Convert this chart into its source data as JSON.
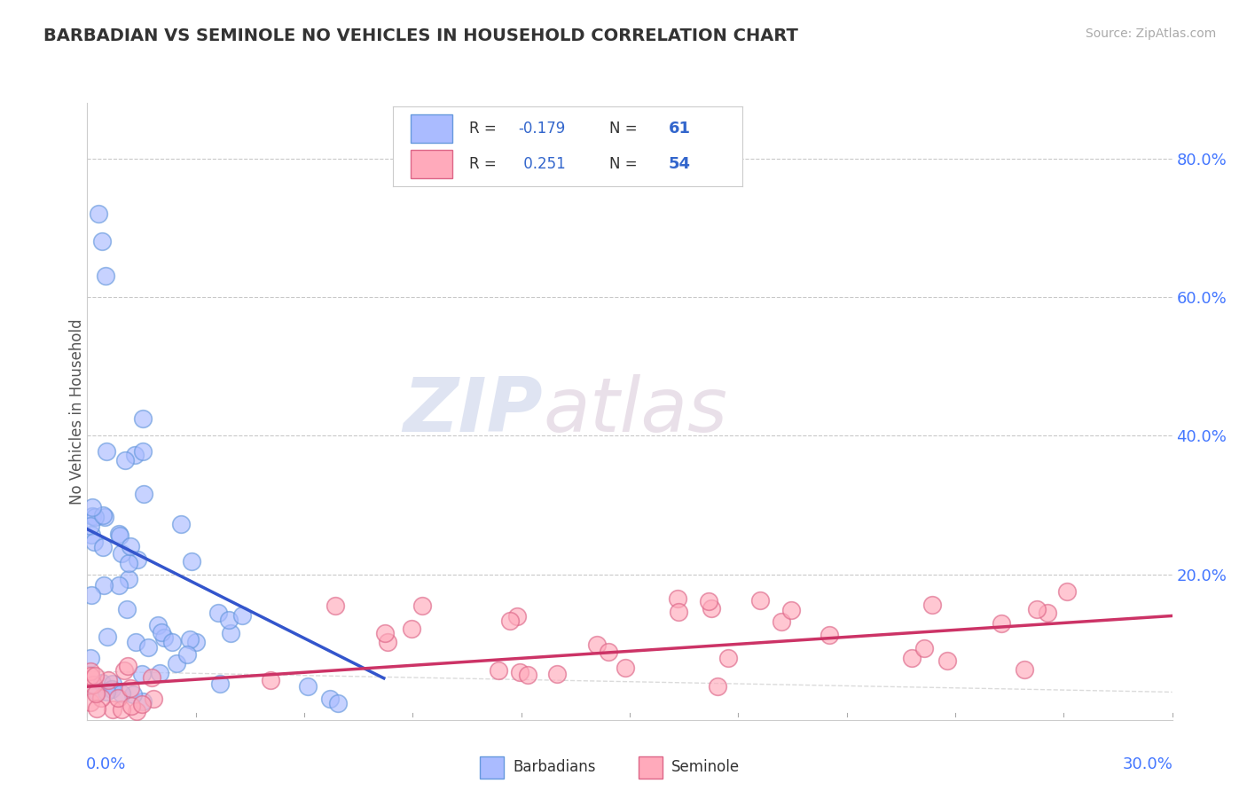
{
  "title": "BARBADIAN VS SEMINOLE NO VEHICLES IN HOUSEHOLD CORRELATION CHART",
  "source": "Source: ZipAtlas.com",
  "ylabel": "No Vehicles in Household",
  "xlim": [
    0.0,
    0.3
  ],
  "ylim": [
    -0.01,
    0.88
  ],
  "yticks_right": [
    0.2,
    0.4,
    0.6,
    0.8
  ],
  "ytick_labels_right": [
    "20.0%",
    "40.0%",
    "60.0%",
    "80.0%"
  ],
  "barbadian_color_face": "#aabbff",
  "barbadian_color_edge": "#6699dd",
  "seminole_color_face": "#ffaabb",
  "seminole_color_edge": "#dd6688",
  "trend_blue": "#3355cc",
  "trend_pink": "#cc3366",
  "barbadian_R": -0.179,
  "barbadian_N": 61,
  "seminole_R": 0.251,
  "seminole_N": 54,
  "watermark_zip": "ZIP",
  "watermark_atlas": "atlas",
  "title_color": "#333333",
  "source_color": "#aaaaaa",
  "axis_label_color": "#4477ff",
  "legend_text_color_black": "#333333",
  "legend_text_color_blue": "#4477ff"
}
